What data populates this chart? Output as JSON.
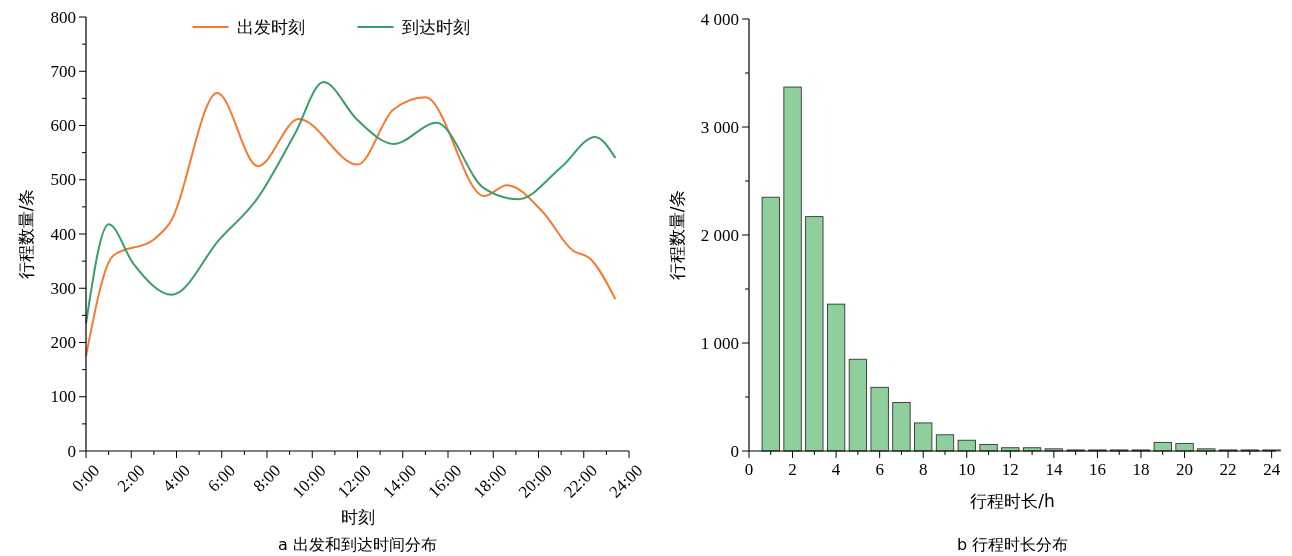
{
  "chart_data": [
    {
      "type": "line",
      "title": "a 出发和到达时间分布",
      "xlabel": "时刻",
      "ylabel": "行程数量/条",
      "legend": "top",
      "grid": false,
      "marker": "none",
      "line_style": "solid",
      "xlim": [
        0,
        24
      ],
      "ylim": [
        0,
        800
      ],
      "xticks": [
        {
          "value": 0,
          "label": "0:00"
        },
        {
          "value": 1,
          "label": null
        },
        {
          "value": 2,
          "label": "2:00"
        },
        {
          "value": 3,
          "label": null
        },
        {
          "value": 4,
          "label": "4:00"
        },
        {
          "value": 5,
          "label": null
        },
        {
          "value": 6,
          "label": "6:00"
        },
        {
          "value": 7,
          "label": null
        },
        {
          "value": 8,
          "label": "8:00"
        },
        {
          "value": 9,
          "label": null
        },
        {
          "value": 10,
          "label": "10:00"
        },
        {
          "value": 11,
          "label": null
        },
        {
          "value": 12,
          "label": "12:00"
        },
        {
          "value": 13,
          "label": null
        },
        {
          "value": 14,
          "label": "14:00"
        },
        {
          "value": 15,
          "label": null
        },
        {
          "value": 16,
          "label": "16:00"
        },
        {
          "value": 17,
          "label": null
        },
        {
          "value": 18,
          "label": "18:00"
        },
        {
          "value": 19,
          "label": null
        },
        {
          "value": 20,
          "label": "20:00"
        },
        {
          "value": 21,
          "label": null
        },
        {
          "value": 22,
          "label": "22:00"
        },
        {
          "value": 23,
          "label": null
        },
        {
          "value": 24,
          "label": "24:00"
        }
      ],
      "yticks": [
        0,
        {
          "value": 50,
          "label": null
        },
        100,
        {
          "value": 150,
          "label": null
        },
        200,
        {
          "value": 250,
          "label": null
        },
        300,
        {
          "value": 350,
          "label": null
        },
        400,
        {
          "value": 450,
          "label": null
        },
        500,
        {
          "value": 550,
          "label": null
        },
        600,
        {
          "value": 650,
          "label": null
        },
        700,
        {
          "value": 750,
          "label": null
        },
        800
      ],
      "series": [
        {
          "name": "出发时刻",
          "color": "#f47a30",
          "x": [
            0,
            1.2,
            3,
            3.7,
            5.8,
            7.6,
            9.4,
            12,
            13.6,
            15,
            17.6,
            18.6,
            20.2,
            21.5,
            22.3,
            23.4
          ],
          "values": [
            175,
            360,
            390,
            420,
            660,
            525,
            612,
            528,
            630,
            652,
            470,
            490,
            440,
            370,
            354,
            280
          ]
        },
        {
          "name": "到达时刻",
          "color": "#3a9e6a",
          "x": [
            0,
            1,
            2.1,
            3.8,
            5.9,
            7.6,
            9.2,
            10.5,
            12,
            13.6,
            15.5,
            17.6,
            19.1,
            21,
            22.5,
            23.4
          ],
          "values": [
            235,
            418,
            345,
            288,
            390,
            467,
            582,
            680,
            610,
            566,
            605,
            484,
            464,
            523,
            579,
            540
          ]
        }
      ]
    },
    {
      "type": "bar",
      "title": "b 行程时长分布",
      "xlabel": "行程时长/h",
      "ylabel": "行程数量/条",
      "grid": false,
      "legend": false,
      "xlim": [
        0,
        24.2
      ],
      "ylim": [
        0,
        4000
      ],
      "xticks": [
        0,
        {
          "value": 1,
          "label": null
        },
        2,
        {
          "value": 3,
          "label": null
        },
        4,
        {
          "value": 5,
          "label": null
        },
        6,
        {
          "value": 7,
          "label": null
        },
        8,
        {
          "value": 9,
          "label": null
        },
        10,
        {
          "value": 11,
          "label": null
        },
        12,
        {
          "value": 13,
          "label": null
        },
        14,
        {
          "value": 15,
          "label": null
        },
        16,
        {
          "value": 17,
          "label": null
        },
        18,
        {
          "value": 19,
          "label": null
        },
        20,
        {
          "value": 21,
          "label": null
        },
        22,
        {
          "value": 23,
          "label": null
        },
        24
      ],
      "yticks": [
        0,
        {
          "value": 500,
          "label": null
        },
        {
          "value": 1000,
          "label": "1 000"
        },
        {
          "value": 1500,
          "label": null
        },
        {
          "value": 2000,
          "label": "2 000"
        },
        {
          "value": 2500,
          "label": null
        },
        {
          "value": 3000,
          "label": "3 000"
        },
        {
          "value": 3500,
          "label": null
        },
        {
          "value": 4000,
          "label": "4 000"
        }
      ],
      "x": [
        1,
        2,
        3,
        4,
        5,
        6,
        7,
        8,
        9,
        10,
        11,
        12,
        13,
        14,
        15,
        16,
        17,
        18,
        19,
        20,
        21,
        22,
        23,
        24
      ],
      "values": [
        2350,
        3370,
        2170,
        1360,
        850,
        590,
        450,
        260,
        150,
        100,
        60,
        30,
        30,
        20,
        10,
        10,
        10,
        10,
        80,
        70,
        20,
        10,
        10,
        10
      ],
      "color": "#8fcf9d"
    }
  ]
}
